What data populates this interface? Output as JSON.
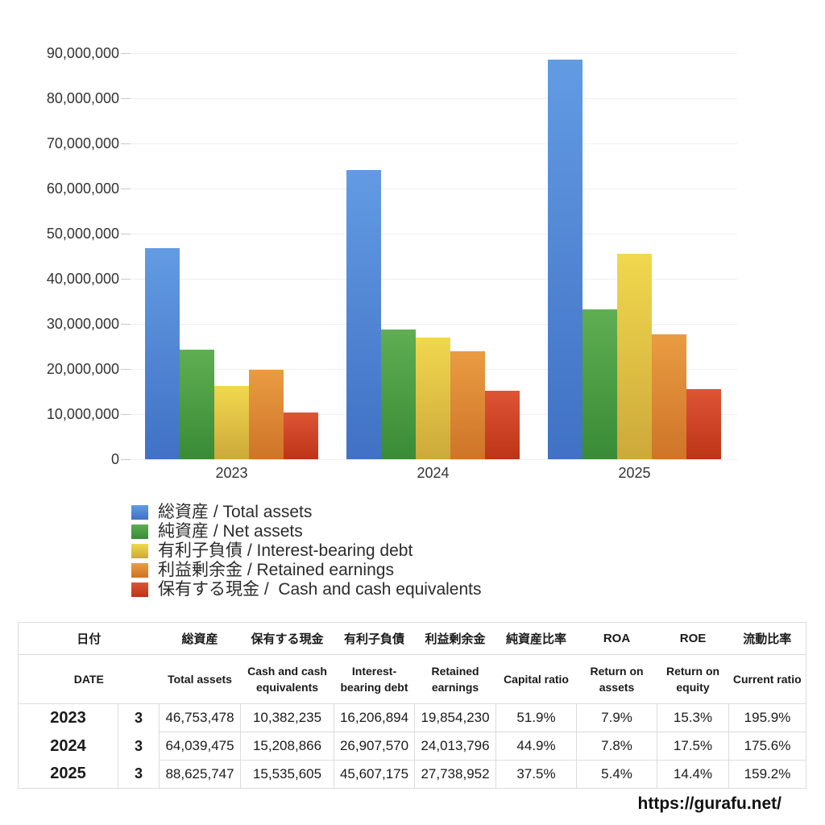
{
  "chart_data": {
    "type": "bar",
    "title": "",
    "xlabel": "",
    "ylabel": "",
    "categories": [
      "2023",
      "2024",
      "2025"
    ],
    "series": [
      {
        "name": "総資産 / Total assets",
        "values": [
          46753478,
          64039475,
          88625747
        ],
        "color_top": "#639be3",
        "color_bottom": "#4071c5"
      },
      {
        "name": "純資産 / Net assets",
        "values": [
          24260000,
          28750000,
          33230000
        ],
        "color_top": "#5fae52",
        "color_bottom": "#3a8b36"
      },
      {
        "name": "有利子負債 / Interest-bearing debt",
        "values": [
          16206894,
          26907570,
          45607175
        ],
        "color_top": "#f1d84e",
        "color_bottom": "#cda93a"
      },
      {
        "name": "利益剰余金 / Retained earnings",
        "values": [
          19854230,
          24013796,
          27738952
        ],
        "color_top": "#e99c42",
        "color_bottom": "#cf7428"
      },
      {
        "name": "保有する現金 /  Cash and cash equivalents",
        "values": [
          10382235,
          15208866,
          15535605
        ],
        "color_top": "#dd5535",
        "color_bottom": "#bd3417"
      }
    ],
    "ylim": [
      0,
      90000000
    ],
    "y_ticks": [
      {
        "value": 0,
        "label": "0"
      },
      {
        "value": 10000000,
        "label": "10,000,000"
      },
      {
        "value": 20000000,
        "label": "20,000,000"
      },
      {
        "value": 30000000,
        "label": "30,000,000"
      },
      {
        "value": 40000000,
        "label": "40,000,000"
      },
      {
        "value": 50000000,
        "label": "50,000,000"
      },
      {
        "value": 60000000,
        "label": "60,000,000"
      },
      {
        "value": 70000000,
        "label": "70,000,000"
      },
      {
        "value": 80000000,
        "label": "80,000,000"
      },
      {
        "value": 90000000,
        "label": "90,000,000"
      }
    ],
    "grid": "horizontal",
    "legend_position": "bottom-left"
  },
  "table": {
    "header_ja": [
      "日付",
      "総資産",
      "保有する現金",
      "有利子負債",
      "利益剰余金",
      "純資産比率",
      "ROA",
      "ROE",
      "流動比率"
    ],
    "header_en": [
      "DATE",
      "Total assets",
      "Cash and cash equivalents",
      "Interest-bearing debt",
      "Retained earnings",
      "Capital ratio",
      "Return on assets",
      "Return on equity",
      "Current ratio"
    ],
    "rows": [
      {
        "year": "2023",
        "month": "3",
        "values": [
          "46,753,478",
          "10,382,235",
          "16,206,894",
          "19,854,230",
          "51.9%",
          "7.9%",
          "15.3%",
          "195.9%"
        ]
      },
      {
        "year": "2024",
        "month": "3",
        "values": [
          "64,039,475",
          "15,208,866",
          "26,907,570",
          "24,013,796",
          "44.9%",
          "7.8%",
          "17.5%",
          "175.6%"
        ]
      },
      {
        "year": "2025",
        "month": "3",
        "values": [
          "88,625,747",
          "15,535,605",
          "45,607,175",
          "27,738,952",
          "37.5%",
          "5.4%",
          "14.4%",
          "159.2%"
        ]
      }
    ]
  },
  "footer": {
    "url": "https://gurafu.net/"
  }
}
